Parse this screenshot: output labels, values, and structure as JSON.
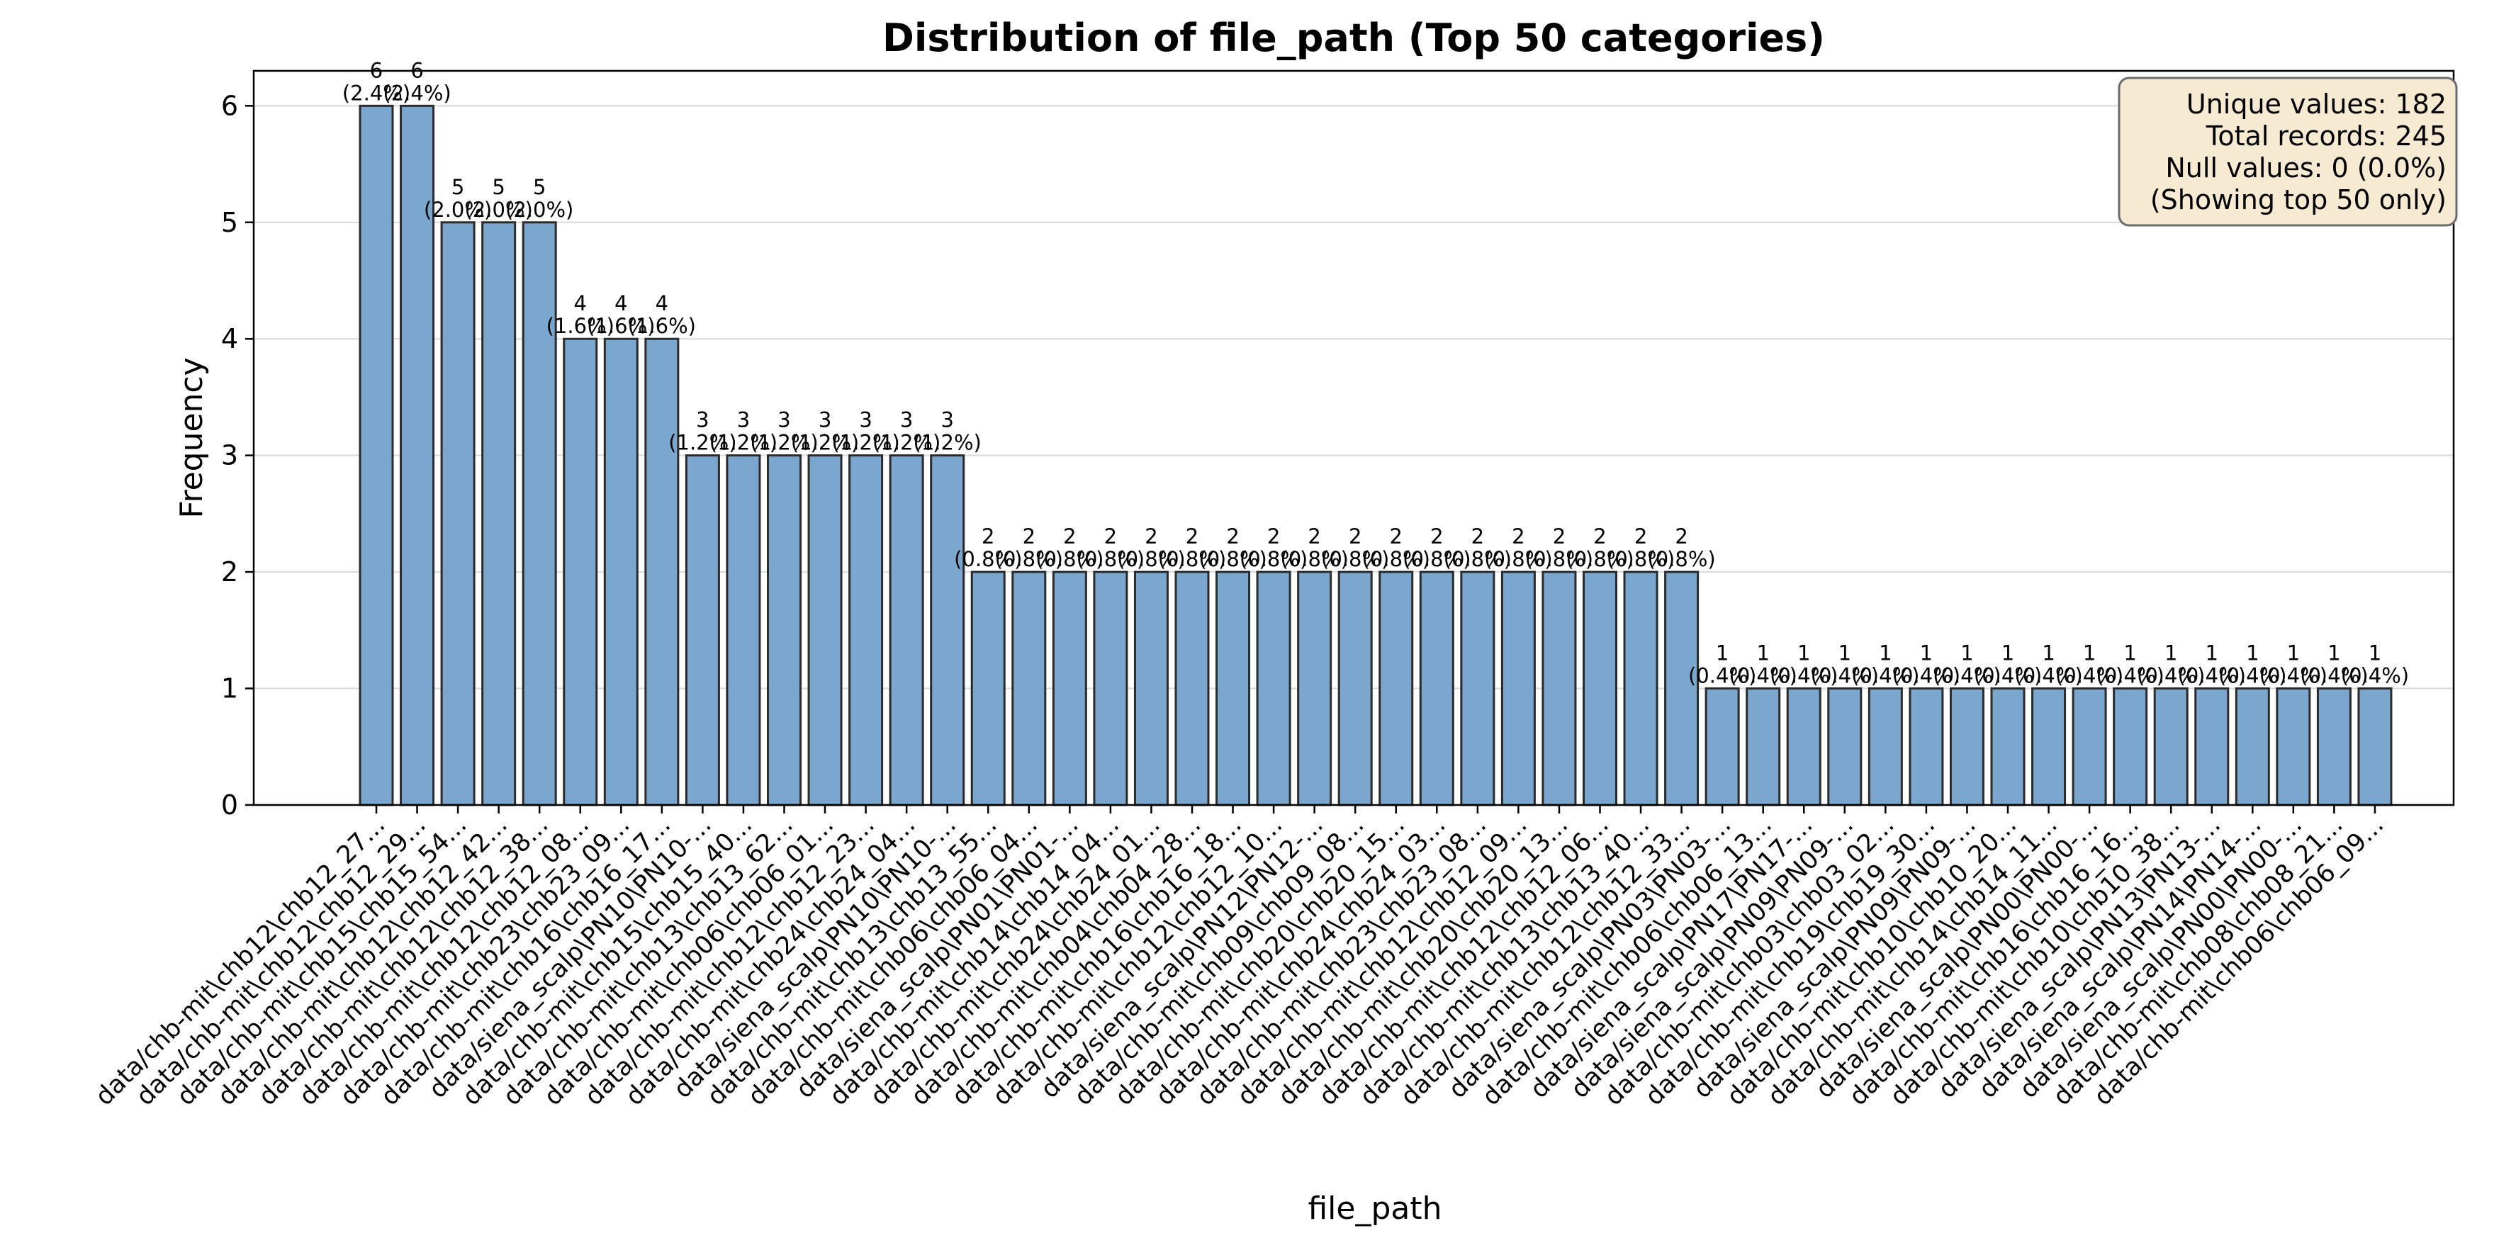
{
  "chart_data": {
    "type": "bar",
    "title": "Distribution of file_path (Top 50 categories)",
    "xlabel": "file_path",
    "ylabel": "Frequency",
    "ylim": [
      0,
      6.3
    ],
    "yticks": [
      0,
      1,
      2,
      3,
      4,
      5,
      6
    ],
    "grid": "y",
    "bar_color": "#7ba6cd",
    "info_box_color": "#f6ead3",
    "info_box_lines": [
      "Unique values: 182",
      "Total records: 245",
      "Null values: 0 (0.0%)",
      "(Showing top 50 only)"
    ],
    "categories": [
      "data/chb-mit\\chb12\\chb12_27...",
      "data/chb-mit\\chb12\\chb12_29...",
      "data/chb-mit\\chb15\\chb15_54...",
      "data/chb-mit\\chb12\\chb12_42...",
      "data/chb-mit\\chb12\\chb12_38...",
      "data/chb-mit\\chb12\\chb12_08...",
      "data/chb-mit\\chb23\\chb23_09...",
      "data/chb-mit\\chb16\\chb16_17...",
      "data/siena_scalp\\PN10\\PN10-...",
      "data/chb-mit\\chb15\\chb15_40...",
      "data/chb-mit\\chb13\\chb13_62...",
      "data/chb-mit\\chb06\\chb06_01...",
      "data/chb-mit\\chb12\\chb12_23...",
      "data/chb-mit\\chb24\\chb24_04...",
      "data/siena_scalp\\PN10\\PN10-...",
      "data/chb-mit\\chb13\\chb13_55...",
      "data/chb-mit\\chb06\\chb06_04...",
      "data/siena_scalp\\PN01\\PN01-...",
      "data/chb-mit\\chb14\\chb14_04...",
      "data/chb-mit\\chb24\\chb24_01...",
      "data/chb-mit\\chb04\\chb04_28...",
      "data/chb-mit\\chb16\\chb16_18...",
      "data/chb-mit\\chb12\\chb12_10...",
      "data/siena_scalp\\PN12\\PN12-...",
      "data/chb-mit\\chb09\\chb09_08...",
      "data/chb-mit\\chb20\\chb20_15...",
      "data/chb-mit\\chb24\\chb24_03...",
      "data/chb-mit\\chb23\\chb23_08...",
      "data/chb-mit\\chb12\\chb12_09...",
      "data/chb-mit\\chb20\\chb20_13...",
      "data/chb-mit\\chb12\\chb12_06...",
      "data/chb-mit\\chb13\\chb13_40...",
      "data/chb-mit\\chb12\\chb12_33...",
      "data/siena_scalp\\PN03\\PN03-...",
      "data/chb-mit\\chb06\\chb06_13...",
      "data/siena_scalp\\PN17\\PN17-...",
      "data/siena_scalp\\PN09\\PN09-...",
      "data/chb-mit\\chb03\\chb03_02...",
      "data/chb-mit\\chb19\\chb19_30...",
      "data/siena_scalp\\PN09\\PN09-...",
      "data/chb-mit\\chb10\\chb10_20...",
      "data/chb-mit\\chb14\\chb14_11...",
      "data/siena_scalp\\PN00\\PN00-...",
      "data/chb-mit\\chb16\\chb16_16...",
      "data/chb-mit\\chb10\\chb10_38...",
      "data/siena_scalp\\PN13\\PN13-...",
      "data/siena_scalp\\PN14\\PN14-...",
      "data/siena_scalp\\PN00\\PN00-...",
      "data/chb-mit\\chb08\\chb08_21...",
      "data/chb-mit\\chb06\\chb06_09..."
    ],
    "values": [
      6,
      6,
      5,
      5,
      5,
      4,
      4,
      4,
      3,
      3,
      3,
      3,
      3,
      3,
      3,
      2,
      2,
      2,
      2,
      2,
      2,
      2,
      2,
      2,
      2,
      2,
      2,
      2,
      2,
      2,
      2,
      2,
      2,
      1,
      1,
      1,
      1,
      1,
      1,
      1,
      1,
      1,
      1,
      1,
      1,
      1,
      1,
      1,
      1,
      1
    ],
    "data_labels": [
      [
        "6",
        "(2.4%)"
      ],
      [
        "6",
        "(2.4%)"
      ],
      [
        "5",
        "(2.0%)"
      ],
      [
        "5",
        "(2.0%)"
      ],
      [
        "5",
        "(2.0%)"
      ],
      [
        "4",
        "(1.6%)"
      ],
      [
        "4",
        "(1.6%)"
      ],
      [
        "4",
        "(1.6%)"
      ],
      [
        "3",
        "(1.2%)"
      ],
      [
        "3",
        "(1.2%)"
      ],
      [
        "3",
        "(1.2%)"
      ],
      [
        "3",
        "(1.2%)"
      ],
      [
        "3",
        "(1.2%)"
      ],
      [
        "3",
        "(1.2%)"
      ],
      [
        "3",
        "(1.2%)"
      ],
      [
        "2",
        "(0.8%)"
      ],
      [
        "2",
        "(0.8%)"
      ],
      [
        "2",
        "(0.8%)"
      ],
      [
        "2",
        "(0.8%)"
      ],
      [
        "2",
        "(0.8%)"
      ],
      [
        "2",
        "(0.8%)"
      ],
      [
        "2",
        "(0.8%)"
      ],
      [
        "2",
        "(0.8%)"
      ],
      [
        "2",
        "(0.8%)"
      ],
      [
        "2",
        "(0.8%)"
      ],
      [
        "2",
        "(0.8%)"
      ],
      [
        "2",
        "(0.8%)"
      ],
      [
        "2",
        "(0.8%)"
      ],
      [
        "2",
        "(0.8%)"
      ],
      [
        "2",
        "(0.8%)"
      ],
      [
        "2",
        "(0.8%)"
      ],
      [
        "2",
        "(0.8%)"
      ],
      [
        "2",
        "(0.8%)"
      ],
      [
        "1",
        "(0.4%)"
      ],
      [
        "1",
        "(0.4%)"
      ],
      [
        "1",
        "(0.4%)"
      ],
      [
        "1",
        "(0.4%)"
      ],
      [
        "1",
        "(0.4%)"
      ],
      [
        "1",
        "(0.4%)"
      ],
      [
        "1",
        "(0.4%)"
      ],
      [
        "1",
        "(0.4%)"
      ],
      [
        "1",
        "(0.4%)"
      ],
      [
        "1",
        "(0.4%)"
      ],
      [
        "1",
        "(0.4%)"
      ],
      [
        "1",
        "(0.4%)"
      ],
      [
        "1",
        "(0.4%)"
      ],
      [
        "1",
        "(0.4%)"
      ],
      [
        "1",
        "(0.4%)"
      ],
      [
        "1",
        "(0.4%)"
      ],
      [
        "1",
        "(0.4%)"
      ]
    ]
  }
}
